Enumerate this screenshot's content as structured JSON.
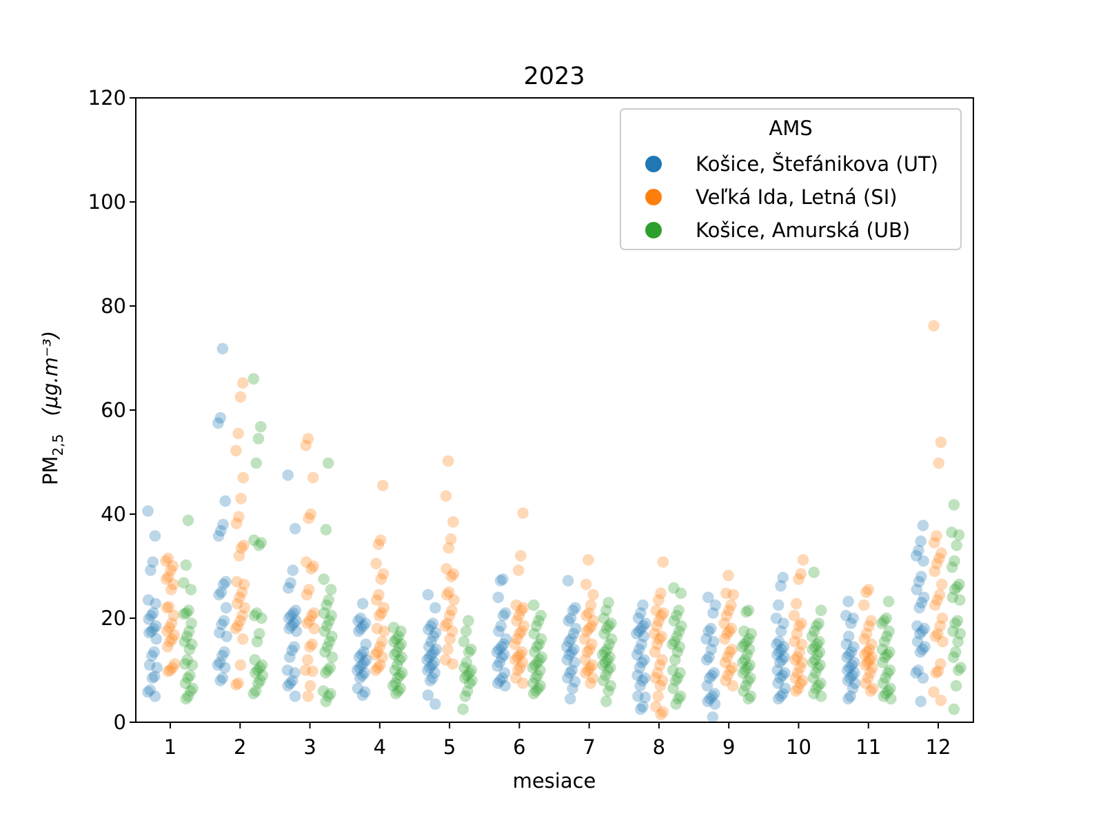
{
  "chart_data": {
    "type": "scatter",
    "title": "2023",
    "xlabel": "mesiace",
    "ylabel": "PM",
    "ylabel_subscript": "2,5",
    "ylabel_unit": "(μg.m⁻³)",
    "categories": [
      "1",
      "2",
      "3",
      "4",
      "5",
      "6",
      "7",
      "8",
      "9",
      "10",
      "11",
      "12"
    ],
    "ylim": [
      0,
      120
    ],
    "yticks": [
      0,
      20,
      40,
      60,
      80,
      100,
      120
    ],
    "grid": false,
    "legend": {
      "title": "AMS",
      "placement": "top-right"
    },
    "series": [
      {
        "name": "Košice, Štefánikova (UT)",
        "color": "#1f77b4",
        "values": [
          [
            40.6,
            35.8,
            30.8,
            29.2,
            23.5,
            22.8,
            21,
            20.5,
            19.8,
            18.5,
            18,
            17.5,
            17.2,
            16,
            13.5,
            12.8,
            11,
            10.5,
            8.8,
            8.5,
            6.2,
            5.8,
            5
          ],
          [
            71.8,
            58.5,
            57.5,
            42.5,
            38,
            36.8,
            35.8,
            27,
            26.5,
            25,
            24.5,
            22,
            19.5,
            18.8,
            17.2,
            16.5,
            13.5,
            12.8,
            11.5,
            11,
            10.5,
            8.5,
            8
          ],
          [
            47.5,
            37.2,
            29.2,
            26.8,
            25.8,
            21.5,
            21,
            20.5,
            20,
            19.5,
            19,
            18.5,
            18,
            17.5,
            14.5,
            13.8,
            12.5,
            10,
            9.5,
            8,
            7.5,
            7,
            5
          ],
          [
            22.8,
            20,
            19.5,
            19,
            18.5,
            18,
            17.5,
            15,
            13.5,
            13,
            12.5,
            12,
            11.5,
            11,
            10.5,
            10,
            9.5,
            9,
            8.5,
            6.5,
            5.8,
            5.2
          ],
          [
            24.5,
            22,
            19,
            18.5,
            17.8,
            17.2,
            16.5,
            15.5,
            14.5,
            14,
            13.5,
            13,
            12.5,
            12,
            11.5,
            11,
            10.5,
            10,
            9.5,
            8.5,
            8,
            5.2,
            3.5
          ],
          [
            27.5,
            27.2,
            24,
            21,
            20.5,
            18.5,
            17.5,
            16,
            15,
            14.5,
            14,
            13.5,
            13,
            12.5,
            11.5,
            10.8,
            9.5,
            8.5,
            8,
            7.5,
            7
          ],
          [
            27.2,
            22,
            21.5,
            20,
            19.5,
            18,
            17,
            16,
            15.5,
            14.5,
            14,
            13.5,
            13,
            12,
            11.5,
            10,
            9.5,
            8.5,
            7.8,
            6.5,
            4.5
          ],
          [
            22.5,
            21,
            20,
            19,
            18.5,
            18,
            17.5,
            17,
            16.5,
            15,
            14,
            13,
            12,
            11.5,
            10.5,
            9,
            8.5,
            8,
            7,
            5,
            4.8,
            3,
            2.5
          ],
          [
            24,
            22.5,
            21,
            18,
            17.5,
            16,
            15.5,
            14,
            12.5,
            12,
            9.5,
            9,
            8.5,
            7,
            5.5,
            5,
            4.5,
            4,
            3.5,
            1
          ],
          [
            27.8,
            26.2,
            22.5,
            20,
            19,
            17.5,
            15.5,
            15,
            14.5,
            14,
            13.5,
            13,
            12.5,
            12,
            11.5,
            10,
            9.5,
            9,
            8.5,
            7.5,
            6.5,
            5.5,
            5,
            4.5
          ],
          [
            23.2,
            20.5,
            20,
            19,
            16.5,
            15,
            14.5,
            13.5,
            13,
            12.5,
            11.5,
            11,
            10.5,
            10,
            9.5,
            9,
            8.5,
            8,
            7.5,
            6.5,
            5,
            4.5
          ],
          [
            37.8,
            34.8,
            33,
            32,
            31,
            28,
            27,
            25.5,
            24,
            23,
            22,
            18.5,
            18,
            17.5,
            17,
            15.5,
            14.5,
            14,
            13.5,
            10,
            9.5,
            8.5,
            4
          ]
        ]
      },
      {
        "name": "Veľká Ida, Letná (SI)",
        "color": "#ff7f0e",
        "values": [
          [
            31.5,
            31,
            30,
            29.2,
            28,
            27.5,
            26.5,
            25.5,
            22.2,
            22,
            20.5,
            19,
            18.2,
            17.5,
            16.8,
            16,
            15.5,
            14.5,
            11.2,
            10.5,
            10,
            9.8
          ],
          [
            65.2,
            62.5,
            55.5,
            52.2,
            47,
            43,
            39.5,
            38.2,
            34,
            33.5,
            32,
            27,
            26.5,
            25,
            24,
            22.8,
            22,
            20.5,
            19.5,
            18.5,
            18,
            16,
            11,
            7.5,
            7.2
          ],
          [
            54.5,
            53.2,
            47,
            40,
            39.2,
            30.8,
            30,
            29.5,
            25.5,
            24.5,
            21,
            20.5,
            19.5,
            19,
            18,
            15,
            14.5,
            12,
            10,
            9.8,
            7,
            5
          ],
          [
            45.5,
            35,
            34.2,
            30.5,
            28.5,
            27.5,
            24.5,
            23.5,
            22,
            21,
            20.5,
            18,
            17.5,
            15.5,
            14.5,
            13.5,
            13,
            12.5,
            11,
            10.5,
            10
          ],
          [
            50.2,
            43.5,
            38.5,
            35.2,
            33.5,
            29.5,
            28.5,
            28,
            25,
            24.5,
            23.5,
            21.5,
            20.5,
            19,
            18.5,
            17.5,
            16,
            14,
            12,
            11.2
          ],
          [
            40.2,
            32,
            29.2,
            22.5,
            22,
            21.5,
            20.5,
            19.5,
            18.5,
            17.5,
            17,
            16,
            15,
            13.5,
            13,
            12.5,
            12,
            11.5,
            10.5,
            10,
            8.5,
            7.5
          ],
          [
            31.2,
            26.5,
            24.5,
            22.5,
            21,
            20.5,
            19.5,
            18.5,
            18,
            17.5,
            16,
            15,
            14,
            13.5,
            12,
            11,
            10.5,
            10,
            9.5,
            8.5,
            7.5
          ],
          [
            30.8,
            24.8,
            23.5,
            21.5,
            21,
            20.5,
            19.5,
            18.5,
            17,
            16.5,
            16,
            15,
            13.5,
            12,
            11,
            9.5,
            8.5,
            8,
            7,
            5,
            3,
            2,
            1.5
          ],
          [
            28.2,
            24.8,
            24.5,
            22.5,
            21.5,
            20.5,
            19,
            18,
            17.5,
            17,
            16,
            14,
            13.5,
            12.5,
            11.5,
            10.5,
            10,
            9,
            8,
            7
          ],
          [
            31.2,
            28.5,
            27.5,
            22.8,
            20.5,
            19,
            18.5,
            17,
            15.5,
            15,
            13.5,
            12.5,
            12,
            11.5,
            10.5,
            9.5,
            8.5,
            8,
            7.5,
            6.5,
            6
          ],
          [
            25.5,
            25,
            22.5,
            19.5,
            18.5,
            17,
            16,
            15,
            14,
            13.5,
            13,
            12.5,
            12,
            11.5,
            11,
            10.5,
            9.5,
            8.5,
            7.5,
            6.5,
            6
          ],
          [
            76.2,
            53.8,
            49.8,
            35.8,
            34.5,
            32.5,
            31.5,
            30.5,
            29,
            26.5,
            24.5,
            23.5,
            22.5,
            20,
            18.5,
            17,
            16.5,
            15.5,
            11.2,
            9.8,
            9.5,
            5.8,
            4.2
          ]
        ]
      },
      {
        "name": "Košice, Amurská (UB)",
        "color": "#2ca02c",
        "values": [
          [
            38.8,
            30.2,
            26.8,
            25.5,
            21.5,
            21,
            20.8,
            19,
            17.5,
            16.5,
            15.5,
            15,
            14,
            12,
            11.2,
            11,
            9,
            8.5,
            7.5,
            6.5,
            6,
            5,
            4.5
          ],
          [
            66,
            56.8,
            54.5,
            49.8,
            35,
            34.5,
            34,
            21,
            20.5,
            20,
            17,
            15.5,
            12,
            11,
            10.5,
            10,
            9.5,
            9,
            8,
            7.5,
            6,
            5.5
          ],
          [
            49.8,
            37,
            27.5,
            25.5,
            23.5,
            22.5,
            21,
            20.5,
            19.5,
            18.5,
            17.5,
            16.5,
            15.5,
            14.5,
            13.5,
            12.5,
            10.5,
            10,
            9.5,
            6,
            5.5,
            5,
            4
          ],
          [
            18.2,
            17.5,
            16.5,
            16,
            15.5,
            15,
            14.5,
            13.5,
            13,
            12.5,
            12,
            11,
            10,
            9.5,
            9,
            8.5,
            7.5,
            7,
            6.5,
            6,
            5.5
          ],
          [
            19.5,
            17.5,
            15.5,
            14,
            13.5,
            11.5,
            10.5,
            10,
            9.5,
            9,
            8.5,
            8,
            7.5,
            6,
            5,
            2.5
          ],
          [
            22.5,
            20.5,
            19.5,
            18.5,
            17,
            16,
            15,
            14.5,
            13.5,
            12.5,
            12,
            11.5,
            11,
            10.5,
            10,
            9,
            8.5,
            7.5,
            7,
            6.5,
            6,
            5.5
          ],
          [
            23,
            21.5,
            20,
            19,
            18.5,
            18,
            17,
            16,
            15,
            14,
            13.5,
            13,
            12.5,
            12,
            11.5,
            11,
            10.5,
            10,
            9,
            8,
            7,
            6,
            4
          ],
          [
            25.8,
            24.8,
            21.5,
            20.5,
            19.5,
            18.5,
            17.5,
            16.5,
            15.5,
            15,
            14.5,
            13.5,
            12,
            10,
            9.5,
            8.5,
            8,
            6.5,
            5,
            4.5,
            3.5
          ],
          [
            21.5,
            21.2,
            17.5,
            17,
            16,
            15.5,
            15,
            14.5,
            14,
            13,
            12,
            11.5,
            11,
            10.5,
            10,
            9.5,
            8.5,
            8,
            7,
            6,
            5,
            4.5
          ],
          [
            28.8,
            21.5,
            19,
            18.5,
            17.5,
            16.5,
            15.5,
            15,
            14.5,
            14,
            13.5,
            13,
            12,
            11.5,
            11,
            10.5,
            9.5,
            8.5,
            7.5,
            7,
            6.5,
            5.5,
            5
          ],
          [
            23.2,
            20,
            19.5,
            19,
            17.5,
            16.5,
            15.5,
            14,
            13.5,
            13,
            12.5,
            11.5,
            10,
            9.5,
            8.5,
            7.5,
            6.5,
            6,
            5.5,
            5,
            4.5
          ],
          [
            41.8,
            36.5,
            36,
            34,
            31,
            29.8,
            26.5,
            26,
            25.5,
            24,
            23.5,
            19.5,
            19,
            17.5,
            17,
            15.5,
            13.5,
            12.5,
            10.5,
            10,
            7,
            2.5
          ]
        ]
      }
    ]
  }
}
